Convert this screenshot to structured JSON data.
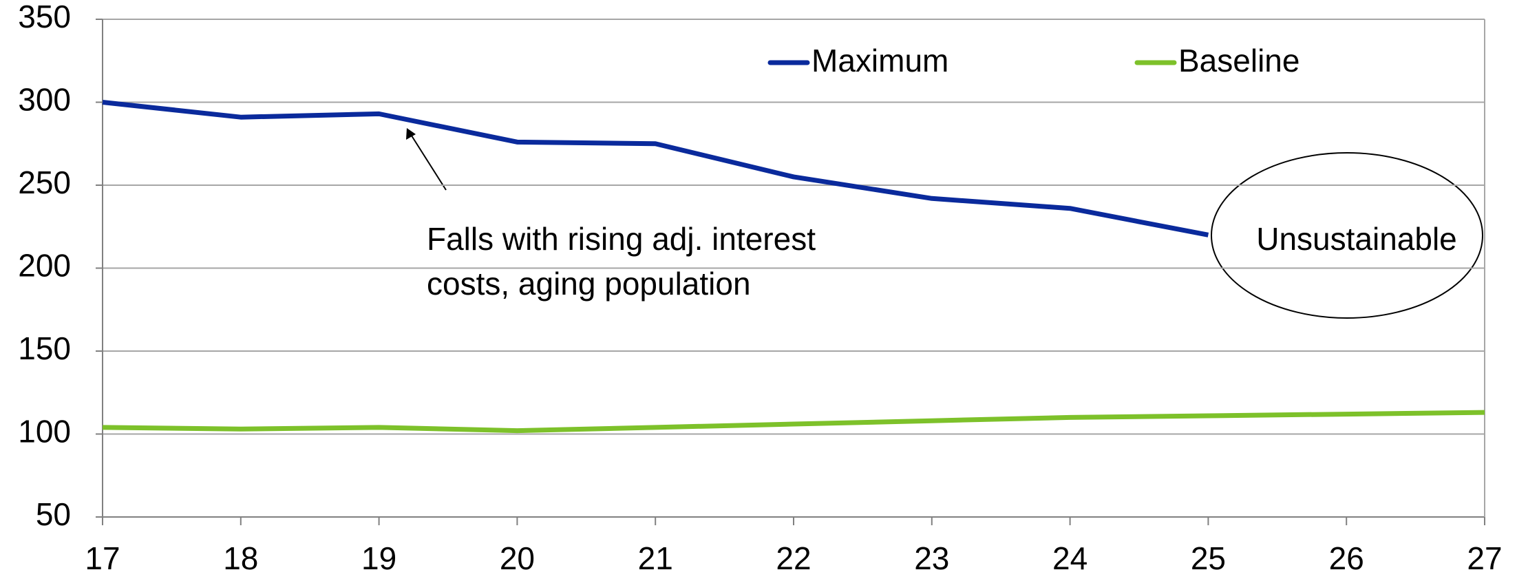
{
  "chart_data": {
    "type": "line",
    "x": [
      17,
      18,
      19,
      20,
      21,
      22,
      23,
      24,
      25,
      26,
      27
    ],
    "series": [
      {
        "name": "Maximum",
        "color": "#0a2a9c",
        "values": [
          300,
          291,
          293,
          276,
          275,
          255,
          242,
          236,
          220,
          null,
          null
        ]
      },
      {
        "name": "Baseline",
        "color": "#7dc12a",
        "values": [
          104,
          103,
          104,
          102,
          104,
          106,
          108,
          110,
          111,
          112,
          113
        ]
      }
    ],
    "xlim": [
      17,
      27
    ],
    "xticks": [
      17,
      18,
      19,
      20,
      21,
      22,
      23,
      24,
      25,
      26,
      27
    ],
    "ylim": [
      50,
      350
    ],
    "yticks": [
      50,
      100,
      150,
      200,
      250,
      300,
      350
    ],
    "grid": true,
    "legend": "top",
    "annotations": [
      "Falls with rising adj. interest",
      "costs, aging population",
      "Unsustainable"
    ]
  }
}
